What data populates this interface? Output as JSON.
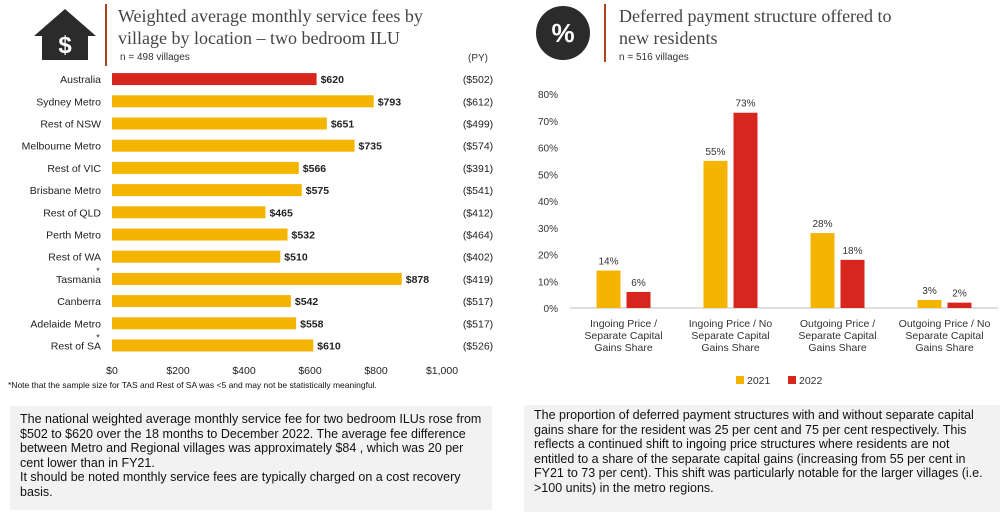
{
  "left": {
    "icon": "dollar-house-icon",
    "title_line1": "Weighted average monthly service fees by",
    "title_line2": "village by location – two bedroom ILU",
    "subtitle": "n = 498 villages",
    "py_header": "(PY)",
    "note": "*Note that the sample size for TAS and Rest of SA was <5 and may not be statistically meaningful.",
    "paragraph1": "The national weighted average monthly service fee for two bedroom ILUs rose from $502 to $620 over the 18 months to December 2022. The average fee difference between Metro and Regional villages was approximately $84 , which was 20 per cent lower than in FY21.",
    "paragraph2": "It should be noted monthly service fees are typically charged on a cost recovery basis."
  },
  "right": {
    "icon": "percent-circle-icon",
    "title_line1": "Deferred payment structure offered to",
    "title_line2": "new residents",
    "subtitle": "n = 516 villages",
    "paragraph": "The proportion of deferred payment structures with and without separate capital gains share for the resident was 25 per cent and 75 per cent respectively. This reflects a continued shift to ingoing price structures where residents are not entitled to a share of the separate capital gains (increasing from 55 per cent in FY21 to 73 per cent). This shift was particularly notable for the larger villages (i.e. >100 units) in the metro regions."
  },
  "colors": {
    "highlight": "#d7261e",
    "bar": "#f5b400",
    "series2021": "#f5b400",
    "series2022": "#d7261e",
    "rule": "#b04020"
  },
  "chart_data": [
    {
      "type": "bar",
      "orientation": "horizontal",
      "categories": [
        "Australia",
        "Sydney Metro",
        "Rest of NSW",
        "Melbourne Metro",
        "Rest of VIC",
        "Brisbane Metro",
        "Rest of QLD",
        "Perth Metro",
        "Rest of WA",
        "Tasmania",
        "Canberra",
        "Adelaide Metro",
        "Rest of SA"
      ],
      "category_marks": [
        "",
        "",
        "",
        "",
        "",
        "",
        "",
        "",
        "",
        "*",
        "",
        "",
        "*"
      ],
      "values": [
        620,
        793,
        651,
        735,
        566,
        575,
        465,
        532,
        510,
        878,
        542,
        558,
        610
      ],
      "value_labels": [
        "$620",
        "$793",
        "$651",
        "$735",
        "$566",
        "$575",
        "$465",
        "$532",
        "$510",
        "$878",
        "$542",
        "$558",
        "$610"
      ],
      "prior_year_labels": [
        "($502)",
        "($612)",
        "($499)",
        "($574)",
        "($391)",
        "($541)",
        "($412)",
        "($464)",
        "($402)",
        "($419)",
        "($517)",
        "($517)",
        "($526)"
      ],
      "xlim": [
        0,
        1000
      ],
      "xticks": [
        "$0",
        "$200",
        "$400",
        "$600",
        "$800",
        "$1,000"
      ],
      "highlight_category": "Australia"
    },
    {
      "type": "bar",
      "categories": [
        [
          "Ingoing Price /",
          "Separate Capital",
          "Gains Share"
        ],
        [
          "Ingoing Price / No",
          "Separate Capital",
          "Gains Share"
        ],
        [
          "Outgoing Price /",
          "Separate Capital",
          "Gains Share"
        ],
        [
          "Outgoing Price / No",
          "Separate Capital",
          "Gains Share"
        ]
      ],
      "series": [
        {
          "name": "2021",
          "values": [
            14,
            55,
            28,
            3
          ],
          "labels": [
            "14%",
            "55%",
            "28%",
            "3%"
          ]
        },
        {
          "name": "2022",
          "values": [
            6,
            73,
            18,
            2
          ],
          "labels": [
            "6%",
            "73%",
            "18%",
            "2%"
          ]
        }
      ],
      "ylim": [
        0,
        80
      ],
      "yticks": [
        "0%",
        "10%",
        "20%",
        "30%",
        "40%",
        "50%",
        "60%",
        "70%",
        "80%"
      ],
      "legend_position": "bottom",
      "grid": false
    }
  ]
}
